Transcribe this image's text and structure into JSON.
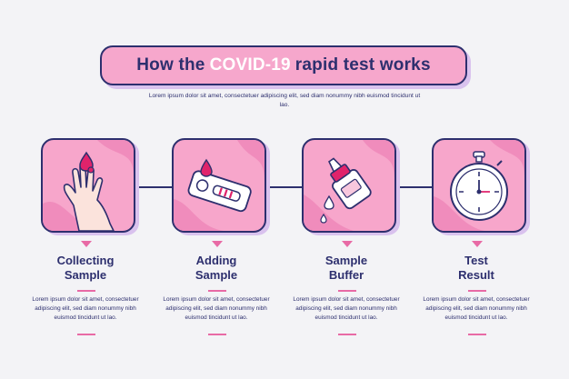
{
  "header": {
    "title_prefix": "How the",
    "title_highlight": "COVID-19",
    "title_suffix": "rapid test works",
    "subtitle": "Lorem ipsum dolor sit amet, consectetuer adipiscing elit, sed diam nonummy nibh euismod tincidunt ut lao."
  },
  "steps": [
    {
      "title_line1": "Collecting",
      "title_line2": "Sample",
      "description": "Lorem ipsum dolor sit amet, consectetuer adipiscing elit, sed diam nonummy nibh euismod tincidunt ut lao.",
      "icon": "hand-blood-drop-icon"
    },
    {
      "title_line1": "Adding",
      "title_line2": "Sample",
      "description": "Lorem ipsum dolor sit amet, consectetuer adipiscing elit, sed diam nonummy nibh euismod tincidunt ut lao.",
      "icon": "test-cassette-icon"
    },
    {
      "title_line1": "Sample",
      "title_line2": "Buffer",
      "description": "Lorem ipsum dolor sit amet, consectetuer adipiscing elit, sed diam nonummy nibh euismod tincidunt ut lao.",
      "icon": "dropper-bottle-icon"
    },
    {
      "title_line1": "Test",
      "title_line2": "Result",
      "description": "Lorem ipsum dolor sit amet, consectetuer adipiscing elit, sed diam nonummy nibh euismod tincidunt ut lao.",
      "icon": "stopwatch-icon"
    }
  ],
  "colors": {
    "navy": "#2d2f6e",
    "pink": "#f7a6cb",
    "accent": "#e86aa5",
    "shadow": "#d9c2ee",
    "background": "#f3f3f6"
  }
}
